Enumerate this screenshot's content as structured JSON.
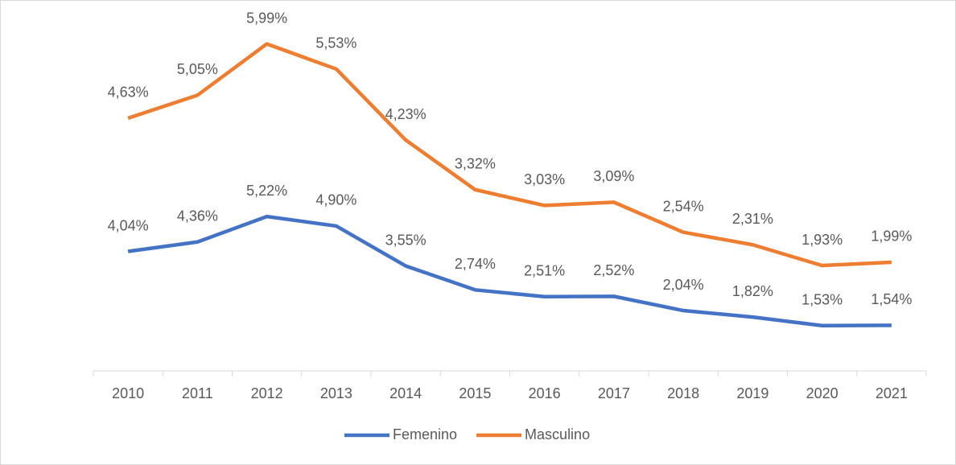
{
  "chart_data": {
    "type": "line",
    "categories": [
      "2010",
      "2011",
      "2012",
      "2013",
      "2014",
      "2015",
      "2016",
      "2017",
      "2018",
      "2019",
      "2020",
      "2021"
    ],
    "series": [
      {
        "name": "Femenino",
        "color": "#4472c4",
        "axis": "y2",
        "values": [
          4.04,
          4.36,
          5.22,
          4.9,
          3.55,
          2.74,
          2.51,
          2.52,
          2.04,
          1.82,
          1.53,
          1.54
        ],
        "value_labels": [
          "4,04%",
          "4,36%",
          "5,22%",
          "4,90%",
          "3,55%",
          "2,74%",
          "2,51%",
          "2,52%",
          "2,04%",
          "1,82%",
          "1,53%",
          "1,54%"
        ]
      },
      {
        "name": "Masculino",
        "color": "#ed7d31",
        "values": [
          4.63,
          5.05,
          5.99,
          5.53,
          4.23,
          3.32,
          3.03,
          3.09,
          2.54,
          2.31,
          1.93,
          1.99
        ],
        "value_labels": [
          "4,63%",
          "5,05%",
          "5,99%",
          "5,53%",
          "4,23%",
          "3,32%",
          "3,03%",
          "3,09%",
          "2,54%",
          "2,31%",
          "1,93%",
          "1,99%"
        ]
      }
    ],
    "ylim": [
      0,
      6.5
    ],
    "y2lim": [
      0,
      12
    ],
    "legend": "bottom"
  }
}
